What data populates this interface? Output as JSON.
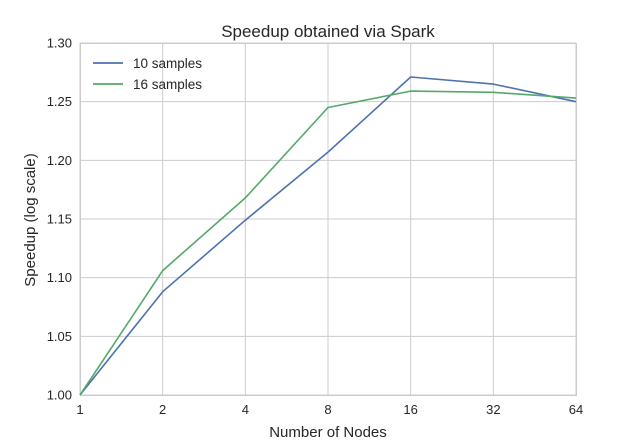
{
  "chart_data": {
    "type": "line",
    "title": "Speedup obtained via Spark",
    "xlabel": "Number of Nodes",
    "ylabel": "Speedup (log scale)",
    "x": [
      1,
      2,
      4,
      8,
      16,
      32,
      64
    ],
    "x_scale": "log2",
    "x_tick_labels": [
      "1",
      "2",
      "4",
      "8",
      "16",
      "32",
      "64"
    ],
    "ylim": [
      1.0,
      1.3
    ],
    "y_ticks": [
      1.0,
      1.05,
      1.1,
      1.15,
      1.2,
      1.25,
      1.3
    ],
    "y_tick_labels": [
      "1.00",
      "1.05",
      "1.10",
      "1.15",
      "1.20",
      "1.25",
      "1.30"
    ],
    "grid": true,
    "legend_position": "top-left",
    "series": [
      {
        "name": "10 samples",
        "color": "#4c72b0",
        "values": [
          1.0,
          1.088,
          1.149,
          1.207,
          1.271,
          1.265,
          1.25
        ]
      },
      {
        "name": "16 samples",
        "color": "#55a868",
        "values": [
          1.0,
          1.106,
          1.168,
          1.245,
          1.259,
          1.258,
          1.253
        ]
      }
    ]
  }
}
